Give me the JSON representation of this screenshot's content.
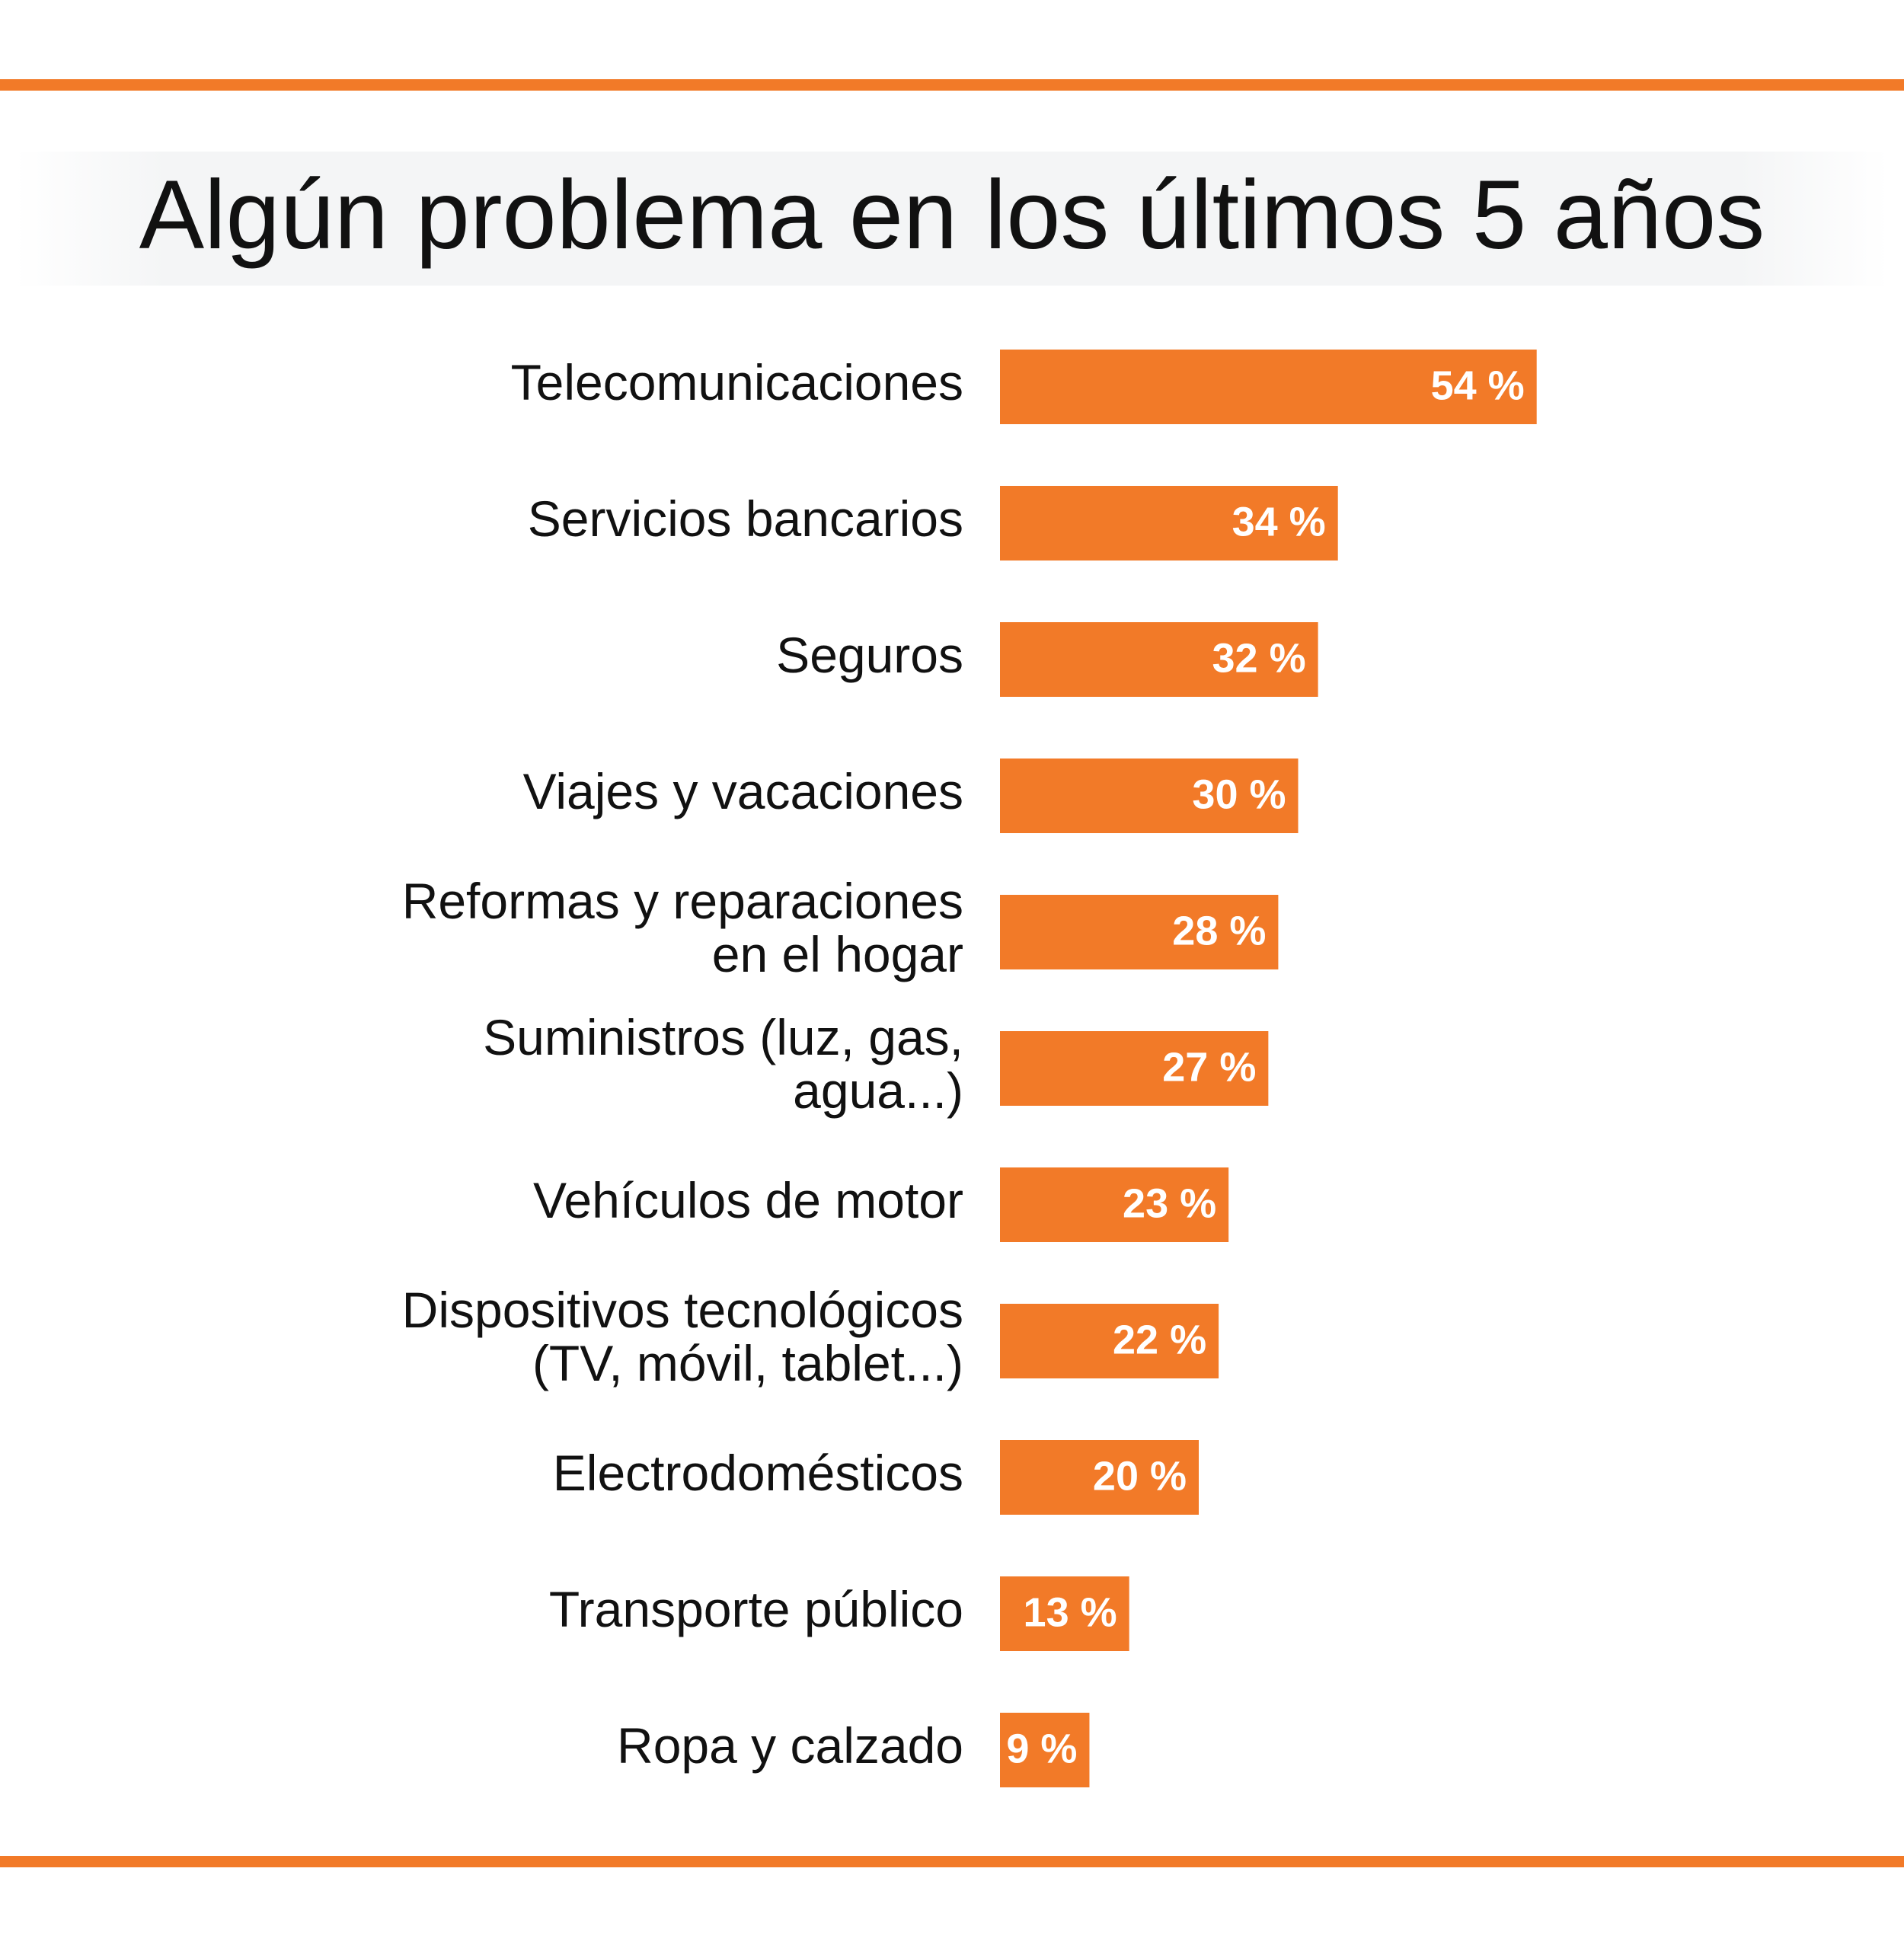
{
  "chart_data": {
    "type": "bar",
    "orientation": "horizontal",
    "title": "Algún problema en los últimos 5 años",
    "categories": [
      "Telecomunicaciones",
      "Servicios bancarios",
      "Seguros",
      "Viajes y vacaciones",
      "Reformas y reparaciones\nen el hogar",
      "Suministros (luz, gas,\nagua...)",
      "Vehículos de motor",
      "Dispositivos tecnológicos\n(TV, móvil, tablet...)",
      "Electrodomésticos",
      "Transporte público",
      "Ropa y calzado"
    ],
    "values": [
      54,
      34,
      32,
      30,
      28,
      27,
      23,
      22,
      20,
      13,
      9
    ],
    "value_labels": [
      "54 %",
      "34 %",
      "32 %",
      "30 %",
      "28 %",
      "27 %",
      "23 %",
      "22 %",
      "20 %",
      "13 %",
      "9 %"
    ],
    "color": "#f27a28"
  }
}
